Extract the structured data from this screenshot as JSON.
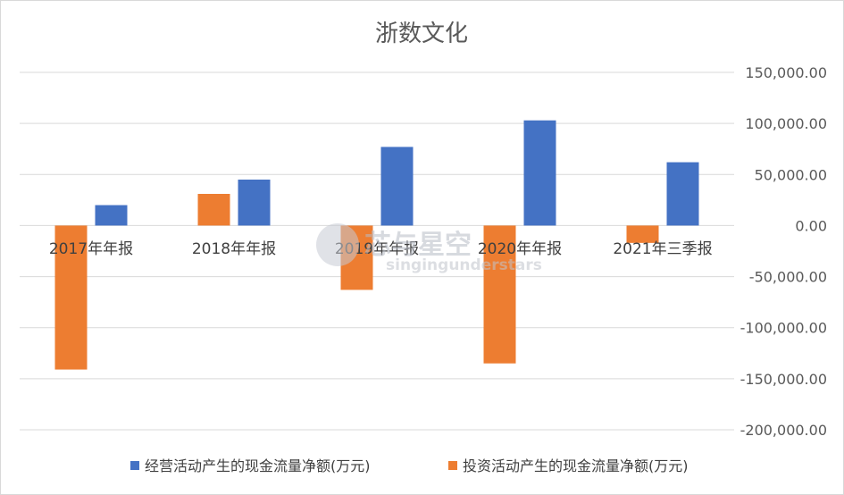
{
  "chart_data": {
    "type": "bar",
    "title": "浙数文化",
    "categories": [
      "2017年年报",
      "2018年年报",
      "2019年年报",
      "2020年年报",
      "2021年三季报"
    ],
    "series": [
      {
        "name": "经营活动产生的现金流量净额(万元)",
        "color": "#4472c4",
        "values": [
          20000,
          45000,
          77000,
          103000,
          62000
        ]
      },
      {
        "name": "投资活动产生的现金流量净额(万元)",
        "color": "#ed7d31",
        "values": [
          -141000,
          31000,
          -63000,
          -135000,
          -17000
        ]
      }
    ],
    "ylim": [
      -200000,
      150000
    ],
    "yticks": [
      150000,
      100000,
      50000,
      0,
      -50000,
      -100000,
      -150000,
      -200000
    ],
    "ytick_labels": [
      "150,000.00",
      "100,000.00",
      "50,000.00",
      "0.00",
      "-50,000.00",
      "-100,000.00",
      "-150,000.00",
      "-200,000.00"
    ],
    "y_axis_side": "right",
    "grid": true,
    "legend_position": "bottom"
  },
  "watermark": {
    "text": "芯与星空",
    "sub": "singingunderstars"
  }
}
